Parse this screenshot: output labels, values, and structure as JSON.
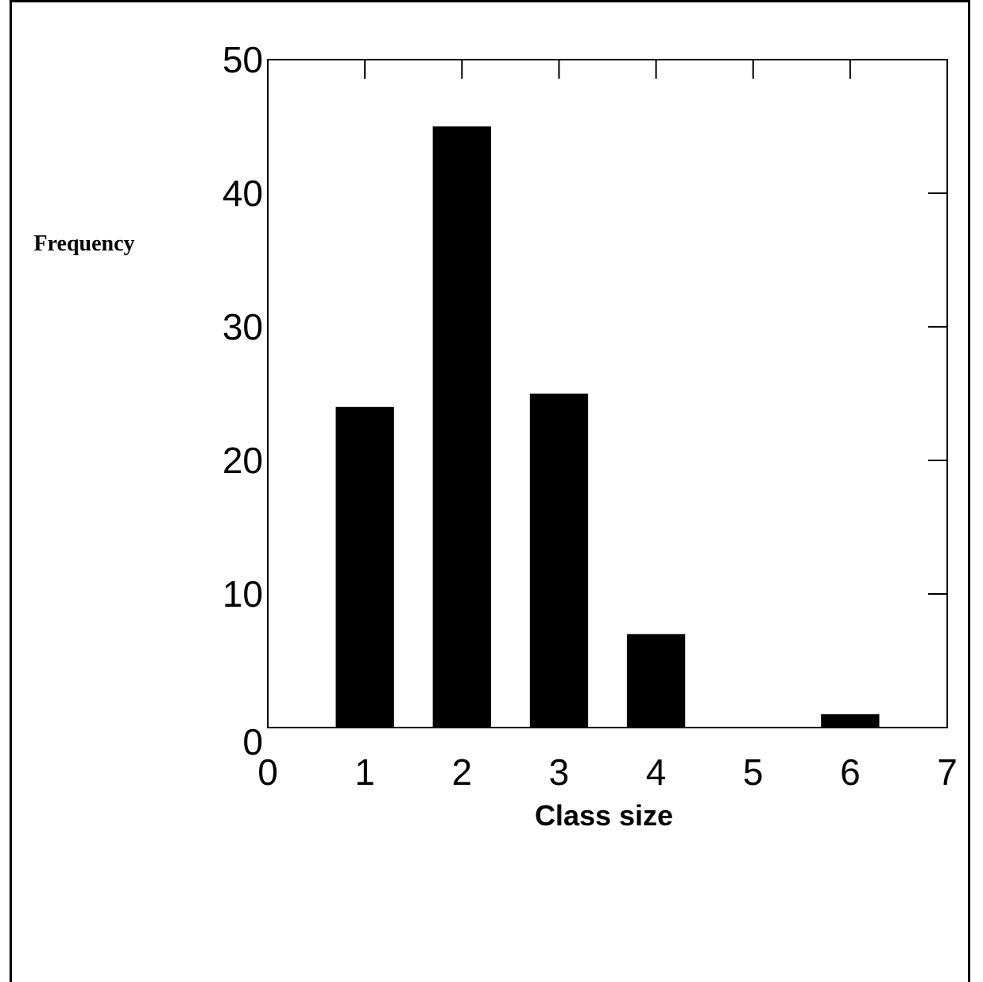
{
  "chart_data": {
    "type": "bar",
    "x": [
      1,
      2,
      3,
      4,
      5,
      6
    ],
    "values": [
      24,
      45,
      25,
      7,
      0,
      1
    ],
    "xlabel": "Class size",
    "ylabel": "Frequency",
    "xlim": [
      0,
      7
    ],
    "ylim": [
      0,
      50
    ],
    "x_ticks": [
      "0",
      "1",
      "2",
      "3",
      "4",
      "5",
      "6",
      "7"
    ],
    "y_ticks": [
      "0",
      "10",
      "20",
      "30",
      "40",
      "50"
    ],
    "grid": false,
    "bar_color": "#000000"
  }
}
